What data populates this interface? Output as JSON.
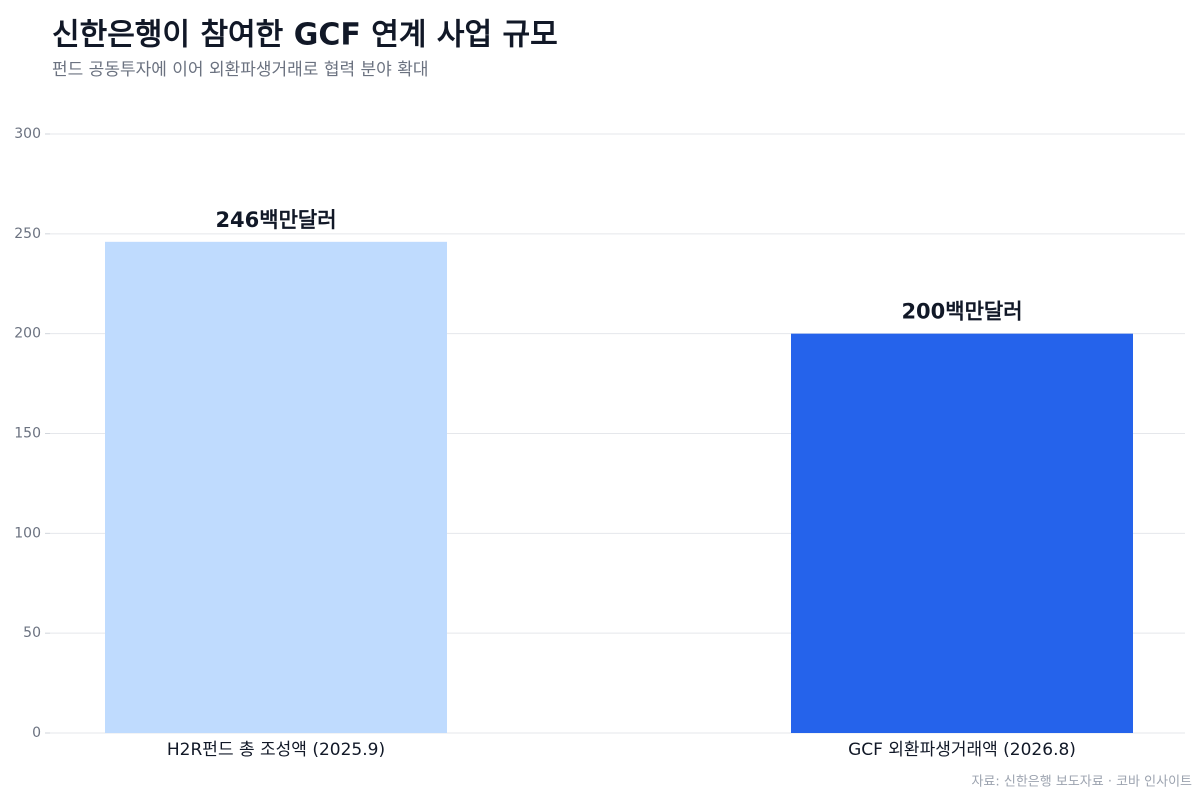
{
  "chart_data": {
    "type": "bar",
    "title": "신한은행이 참여한 GCF 연계 사업 규모",
    "subtitle": "펀드 공동투자에 이어 외환파생거래로 협력 분야 확대",
    "source": "자료: 신한은행 보도자료 · 코바 인사이트",
    "categories": [
      "H2R펀드 총 조성액 (2025.9)",
      "GCF 외환파생거래액 (2026.8)"
    ],
    "values": [
      246,
      200
    ],
    "value_labels": [
      "246백만달러",
      "200백만달러"
    ],
    "colors": [
      "#bfdbfe",
      "#2563eb"
    ],
    "ylim": [
      0,
      300
    ],
    "yticks": [
      0,
      50,
      100,
      150,
      200,
      250,
      300
    ],
    "grid": true
  }
}
